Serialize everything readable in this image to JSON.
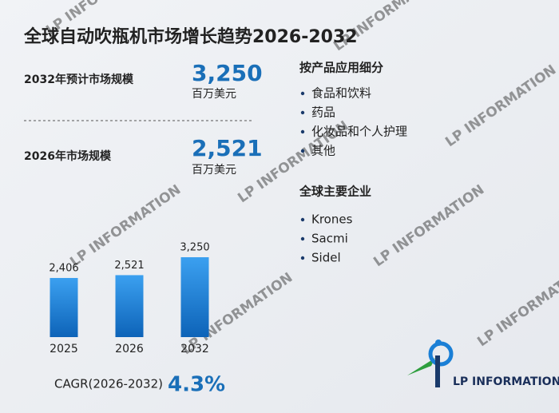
{
  "title": "全球自动吹瓶机市场增长趋势2026-2032",
  "stats": [
    {
      "label": "2032年预计市场规模",
      "value": "3,250",
      "unit": "百万美元"
    },
    {
      "label": "2026年市场规模",
      "value": "2,521",
      "unit": "百万美元"
    }
  ],
  "chart_data": {
    "type": "bar",
    "categories": [
      "2025",
      "2026",
      "2032"
    ],
    "values": [
      2406,
      2521,
      3250
    ],
    "value_labels": [
      "2,406",
      "2,521",
      "3,250"
    ],
    "color": "#1a7fd6"
  },
  "cagr": {
    "label": "CAGR(2026-2032)",
    "value": "4.3%"
  },
  "segments": {
    "title": "按产品应用细分",
    "items": [
      "食品和饮料",
      "药品",
      "化妆品和个人护理",
      "其他"
    ]
  },
  "companies": {
    "title": "全球主要企业",
    "items": [
      "Krones",
      "Sacmi",
      "Sidel"
    ]
  },
  "logo": {
    "text": "LP INFORMATION"
  }
}
